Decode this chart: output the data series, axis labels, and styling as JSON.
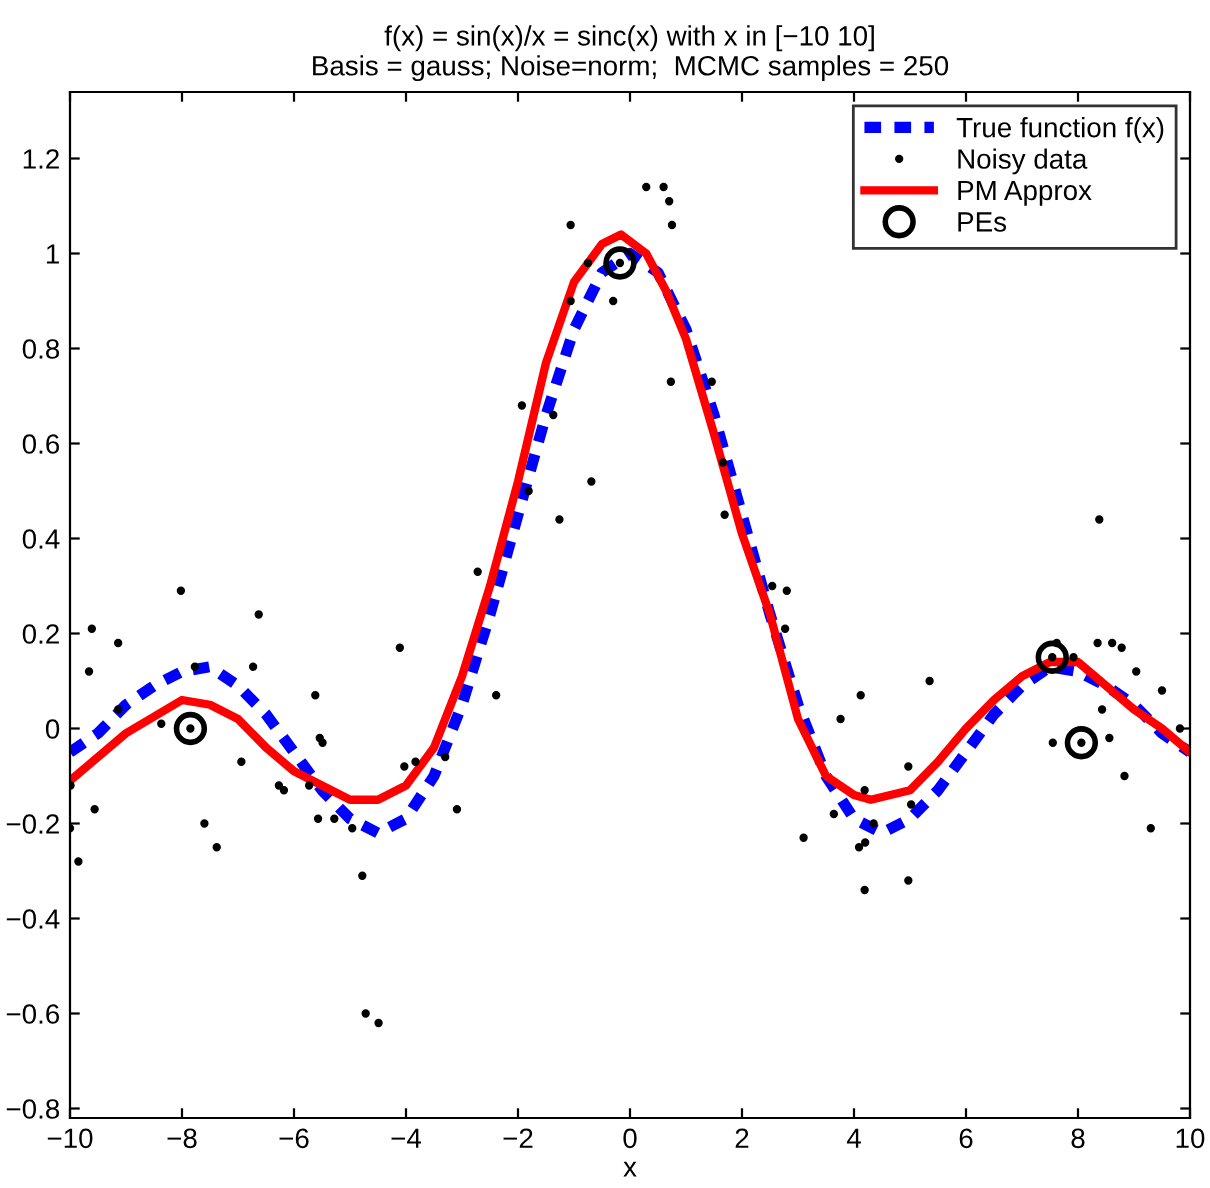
{
  "chart_data": {
    "type": "line",
    "title": "f(x) = sin(x)/x = sinc(x) with x in [−10 10]",
    "subtitle": "Basis = gauss; Noise=norm;  MCMC samples = 250",
    "xlabel": "x",
    "xlim": [
      -10,
      10
    ],
    "xticks": [
      {
        "value": -10,
        "label": "−10"
      },
      {
        "value": -8,
        "label": "−8"
      },
      {
        "value": -6,
        "label": "−6"
      },
      {
        "value": -4,
        "label": "−4"
      },
      {
        "value": -2,
        "label": "−2"
      },
      0,
      2,
      4,
      6,
      8,
      10
    ],
    "ylim": [
      -0.82,
      1.34
    ],
    "yticks": [
      {
        "value": -0.8,
        "label": "−0.8"
      },
      {
        "value": -0.6,
        "label": "−0.6"
      },
      {
        "value": -0.4,
        "label": "−0.4"
      },
      {
        "value": -0.2,
        "label": "−0.2"
      },
      0,
      0.2,
      0.4,
      0.6,
      0.8,
      1,
      1.2
    ],
    "grid": false,
    "legend": "top right",
    "series": [
      {
        "name": "True function f(x)",
        "line_style": "dashed",
        "marker": "none",
        "color": "#0000ff",
        "x": [
          -10,
          -9.5,
          -9,
          -8.5,
          -8,
          -7.5,
          -7,
          -6.5,
          -6,
          -5.5,
          -5,
          -4.5,
          -4,
          -3.5,
          -3,
          -2.5,
          -2,
          -1.5,
          -1,
          -0.5,
          0,
          0.5,
          1,
          1.5,
          2,
          2.5,
          3,
          3.5,
          4,
          4.5,
          5,
          5.5,
          6,
          6.5,
          7,
          7.5,
          8,
          8.5,
          9,
          9.5,
          10
        ],
        "values": [
          -0.05,
          -0.01,
          0.05,
          0.09,
          0.12,
          0.13,
          0.09,
          0.03,
          -0.05,
          -0.13,
          -0.19,
          -0.22,
          -0.19,
          -0.1,
          0.05,
          0.24,
          0.45,
          0.66,
          0.84,
          0.96,
          1.0,
          0.96,
          0.84,
          0.66,
          0.45,
          0.24,
          0.05,
          -0.1,
          -0.19,
          -0.22,
          -0.19,
          -0.13,
          -0.05,
          0.03,
          0.09,
          0.13,
          0.12,
          0.09,
          0.05,
          -0.01,
          -0.05
        ]
      },
      {
        "name": "Noisy data",
        "type": "scatter",
        "marker": "circle",
        "color": "#000000",
        "x": [
          -9.61,
          -9.66,
          -9.14,
          -9.99,
          -10.0,
          -9.85,
          -9.56,
          -9.14,
          -8.37,
          -8.02,
          -7.85,
          -7.77,
          -7.6,
          -7.38,
          -6.94,
          -6.73,
          -6.63,
          -6.27,
          -6.18,
          -5.73,
          -5.62,
          -5.54,
          -5.49,
          -5.57,
          -5.28,
          -4.96,
          -4.78,
          -4.72,
          -4.49,
          -4.11,
          -4.03,
          -3.83,
          -3.3,
          -3.09,
          -2.39,
          -2.72,
          -1.93,
          -1.81,
          -1.37,
          -1.26,
          -1.06,
          -0.75,
          -1.06,
          -0.69,
          -0.3,
          -0.18,
          0.29,
          0.6,
          0.7,
          0.75,
          0.73,
          1.46,
          1.66,
          1.69,
          2.54,
          2.8,
          2.77,
          8.38,
          3.1,
          3.64,
          3.76,
          4.12,
          4.19,
          4.35,
          4.2,
          4.09,
          4.19,
          4.97,
          5.02,
          4.97,
          5.35,
          7.55,
          7.54,
          7.62,
          7.92,
          8.06,
          8.35,
          8.61,
          8.78,
          9.04,
          9.5,
          9.82,
          8.43,
          8.56,
          8.83,
          9.3
        ],
        "values": [
          0.21,
          0.12,
          0.18,
          -0.12,
          -0.21,
          -0.28,
          -0.17,
          0.04,
          0.01,
          0.29,
          0.0,
          0.13,
          -0.2,
          -0.25,
          -0.07,
          0.13,
          0.24,
          -0.12,
          -0.13,
          -0.12,
          0.07,
          -0.02,
          -0.03,
          -0.19,
          -0.19,
          -0.21,
          -0.31,
          -0.6,
          -0.62,
          0.17,
          -0.08,
          -0.07,
          -0.06,
          -0.17,
          0.07,
          0.33,
          0.68,
          0.5,
          0.66,
          0.44,
          1.06,
          0.98,
          0.9,
          0.52,
          0.9,
          0.98,
          1.14,
          1.14,
          1.11,
          1.06,
          0.73,
          0.73,
          0.56,
          0.45,
          0.3,
          0.29,
          0.21,
          0.44,
          -0.23,
          -0.18,
          0.02,
          0.07,
          -0.13,
          -0.2,
          -0.24,
          -0.25,
          -0.34,
          -0.08,
          -0.16,
          -0.32,
          0.1,
          -0.03,
          0.15,
          0.18,
          0.15,
          -0.03,
          0.18,
          0.18,
          0.17,
          0.12,
          0.08,
          0.0,
          0.04,
          -0.02,
          -0.1,
          -0.21
        ]
      },
      {
        "name": "PM Approx",
        "line_style": "solid",
        "marker": "none",
        "color": "#ff0000",
        "x": [
          -10,
          -9,
          -8,
          -7.5,
          -7,
          -6.5,
          -6,
          -5.5,
          -5,
          -4.5,
          -4,
          -3.5,
          -3,
          -2.5,
          -2,
          -1.5,
          -1,
          -0.5,
          -0.16,
          0.29,
          0.65,
          1,
          1.5,
          2,
          2.5,
          3,
          3.5,
          4,
          4.3,
          5,
          5.5,
          6,
          6.5,
          7,
          7.5,
          8,
          8.5,
          9,
          9.5,
          10
        ],
        "values": [
          -0.11,
          -0.01,
          0.06,
          0.05,
          0.02,
          -0.04,
          -0.09,
          -0.12,
          -0.15,
          -0.15,
          -0.12,
          -0.04,
          0.11,
          0.3,
          0.52,
          0.77,
          0.94,
          1.02,
          1.04,
          1.0,
          0.92,
          0.82,
          0.62,
          0.41,
          0.24,
          0.02,
          -0.1,
          -0.14,
          -0.15,
          -0.13,
          -0.07,
          0.0,
          0.06,
          0.11,
          0.14,
          0.14,
          0.09,
          0.04,
          0.0,
          -0.05
        ]
      },
      {
        "name": "PEs",
        "type": "scatter",
        "marker": "circle_open",
        "color": "#000000",
        "x": [
          -7.85,
          -0.18,
          7.54,
          8.06
        ],
        "values": [
          0.0,
          0.98,
          0.15,
          -0.03
        ]
      }
    ]
  }
}
